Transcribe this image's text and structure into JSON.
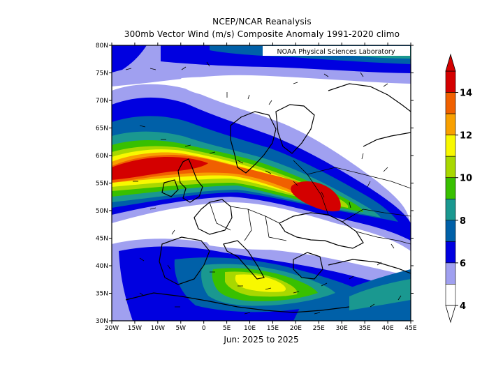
{
  "header": {
    "title": "NCEP/NCAR Reanalysis",
    "subtitle": "300mb Vector Wind (m/s) Composite Anomaly 1991-2020 climo"
  },
  "credit": "NOAA Physical Sciences Laboratory",
  "period_label": "Jun: 2025 to 2025",
  "map": {
    "lon_range": [
      -20,
      45
    ],
    "lat_range": [
      30,
      80
    ],
    "lon_ticks": [
      "20W",
      "15W",
      "10W",
      "5W",
      "0",
      "5E",
      "10E",
      "15E",
      "20E",
      "25E",
      "30E",
      "35E",
      "40E",
      "45E"
    ],
    "lat_ticks": [
      "80N",
      "75N",
      "70N",
      "65N",
      "60N",
      "55N",
      "50N",
      "45N",
      "40N",
      "35N",
      "30N"
    ]
  },
  "colorbar": {
    "labels": [
      "14",
      "12",
      "10",
      "8",
      "6",
      "4"
    ],
    "colors": [
      "#d40000",
      "#f06000",
      "#f8a000",
      "#f8f800",
      "#a8d800",
      "#38c000",
      "#1a9890",
      "#0060a8",
      "#0000e0",
      "#a0a0f0",
      "#ffffff"
    ]
  }
}
